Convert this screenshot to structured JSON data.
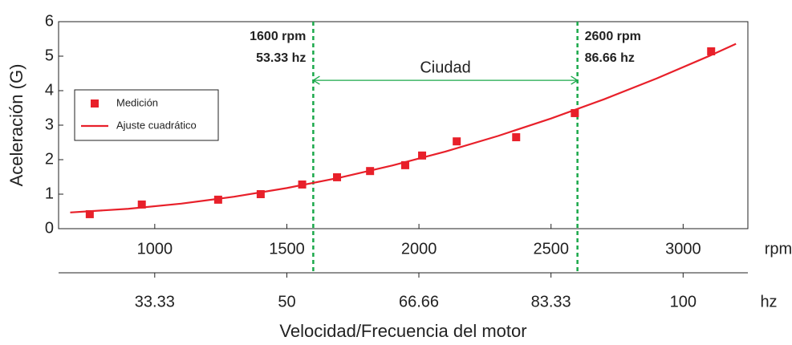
{
  "chart_data": {
    "type": "scatter",
    "y_label": "Aceleración (G)",
    "x_label": "Velocidad/Frecuencia del motor",
    "x_unit": "rpm",
    "x2_unit": "hz",
    "xlim": [
      636,
      3245
    ],
    "xticks": [
      1000,
      1500,
      2000,
      2500,
      3000
    ],
    "x2lim": [
      21.2,
      108.17
    ],
    "x2ticks": [
      33.33,
      50,
      66.66,
      83.33,
      100
    ],
    "ylim": [
      0,
      6
    ],
    "yticks": [
      0,
      1,
      2,
      3,
      4,
      5,
      6
    ],
    "legend": "center left",
    "series": [
      {
        "name": "Medición",
        "type": "scatter",
        "color": "#e8202a",
        "x": [
          754,
          951,
          1240,
          1401,
          1558,
          1690,
          1815,
          1948,
          2012,
          2143,
          2368,
          2590,
          3106
        ],
        "values": [
          0.42,
          0.7,
          0.84,
          1.0,
          1.28,
          1.49,
          1.67,
          1.84,
          2.12,
          2.53,
          2.65,
          3.35,
          5.14
        ]
      },
      {
        "name": "Ajuste cuadrático",
        "type": "line",
        "color": "#e8202a",
        "x": [
          680,
          900,
          1100,
          1300,
          1500,
          1700,
          1900,
          2100,
          2300,
          2500,
          2700,
          2900,
          3100,
          3200
        ],
        "values": [
          0.469,
          0.576,
          0.725,
          0.926,
          1.177,
          1.479,
          1.832,
          2.235,
          2.689,
          3.193,
          3.749,
          4.354,
          5.01,
          5.358
        ]
      }
    ],
    "annotations": [
      {
        "x": 1600,
        "lines": [
          "1600 rpm",
          "53.33 hz"
        ],
        "color": "#1aa84a"
      },
      {
        "x": 2600,
        "lines": [
          "2600 rpm",
          "86.66 hz"
        ],
        "color": "#1aa84a"
      }
    ],
    "range": {
      "x": [
        1600,
        2600
      ],
      "y": 4.3,
      "label": "Ciudad",
      "color": "#1aa84a"
    }
  }
}
